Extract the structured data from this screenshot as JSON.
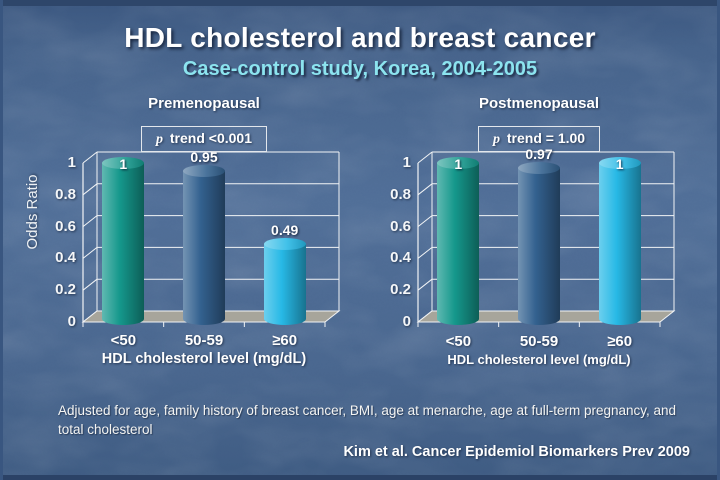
{
  "slide": {
    "title": "HDL cholesterol and breast cancer",
    "subtitle": "Case-control study, Korea, 2004-2005",
    "footnote": "Adjusted for age, family history of breast cancer, BMI, age at menarche, age at full-term pregnancy, and total cholesterol",
    "citation": "Kim et al. Cancer Epidemiol Biomarkers Prev 2009"
  },
  "colors": {
    "background_base": "#4a678f",
    "subtitle_text": "#8ce4ef",
    "frame_stroke": "#f2f4f6",
    "floor_fill": "#a7a59b",
    "bar_teal": "#15988c",
    "bar_blue": "#33618f",
    "bar_cyan": "#27b9e6"
  },
  "chart_data": [
    {
      "type": "bar",
      "title": "Premenopausal",
      "p_trend": "p trend <0.001",
      "categories": [
        "<50",
        "50-59",
        "≥60"
      ],
      "values": [
        1,
        0.95,
        0.49
      ],
      "value_labels": [
        "1",
        "0.95",
        "0.49"
      ],
      "bar_colors": [
        "#15988c",
        "#33618f",
        "#27b9e6"
      ],
      "xlabel": "HDL cholesterol level (mg/dL)",
      "ylabel": "Odds Ratio",
      "ylim": [
        0,
        1
      ],
      "yticks": [
        0,
        0.2,
        0.4,
        0.6,
        0.8,
        1
      ],
      "ytick_labels": [
        "0",
        "0.2",
        "0.4",
        "0.6",
        "0.8",
        "1"
      ],
      "grid": true,
      "legend": "none"
    },
    {
      "type": "bar",
      "title": "Postmenopausal",
      "p_trend": "p trend = 1.00",
      "categories": [
        "<50",
        "50-59",
        "≥60"
      ],
      "values": [
        1,
        0.97,
        1
      ],
      "value_labels": [
        "1",
        "0.97",
        "1"
      ],
      "bar_colors": [
        "#15988c",
        "#33618f",
        "#27b9e6"
      ],
      "xlabel": "HDL cholesterol level (mg/dL)",
      "ylabel": "",
      "ylim": [
        0,
        1
      ],
      "yticks": [
        0,
        0.2,
        0.4,
        0.6,
        0.8,
        1
      ],
      "ytick_labels": [
        "0",
        "0.2",
        "0.4",
        "0.6",
        "0.8",
        "1"
      ],
      "grid": true,
      "legend": "none"
    }
  ]
}
